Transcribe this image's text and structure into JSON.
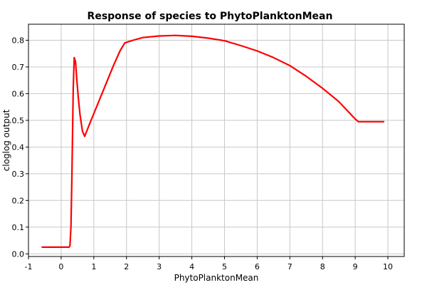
{
  "chart_data": {
    "type": "line",
    "title": "Response of species to PhytoPlanktonMean",
    "xlabel": "PhytoPlanktonMean",
    "ylabel": "cloglog output",
    "xlim": [
      -1,
      10.5
    ],
    "ylim": [
      -0.01,
      0.86
    ],
    "xticks": [
      -1,
      0,
      1,
      2,
      3,
      4,
      5,
      6,
      7,
      8,
      9,
      10
    ],
    "yticks": [
      0.0,
      0.1,
      0.2,
      0.3,
      0.4,
      0.5,
      0.6,
      0.7,
      0.8
    ],
    "ytick_labels": [
      "0.0",
      "0.1",
      "0.2",
      "0.3",
      "0.4",
      "0.5",
      "0.6",
      "0.7",
      "0.8"
    ],
    "grid": true,
    "series": [
      {
        "color": "#ff0000",
        "x": [
          -0.58,
          0.0,
          0.24,
          0.27,
          0.3,
          0.33,
          0.37,
          0.4,
          0.44,
          0.48,
          0.53,
          0.58,
          0.65,
          0.72,
          0.85,
          1.0,
          1.2,
          1.4,
          1.6,
          1.8,
          1.95,
          2.2,
          2.5,
          3.0,
          3.5,
          4.0,
          4.5,
          5.0,
          5.5,
          6.0,
          6.5,
          7.0,
          7.5,
          8.0,
          8.5,
          9.0,
          9.1,
          9.87
        ],
        "y": [
          0.025,
          0.025,
          0.025,
          0.03,
          0.1,
          0.3,
          0.62,
          0.735,
          0.72,
          0.65,
          0.58,
          0.52,
          0.46,
          0.44,
          0.48,
          0.525,
          0.585,
          0.645,
          0.705,
          0.76,
          0.79,
          0.8,
          0.81,
          0.816,
          0.818,
          0.815,
          0.808,
          0.798,
          0.78,
          0.76,
          0.735,
          0.705,
          0.665,
          0.62,
          0.57,
          0.505,
          0.495,
          0.495
        ]
      }
    ]
  }
}
